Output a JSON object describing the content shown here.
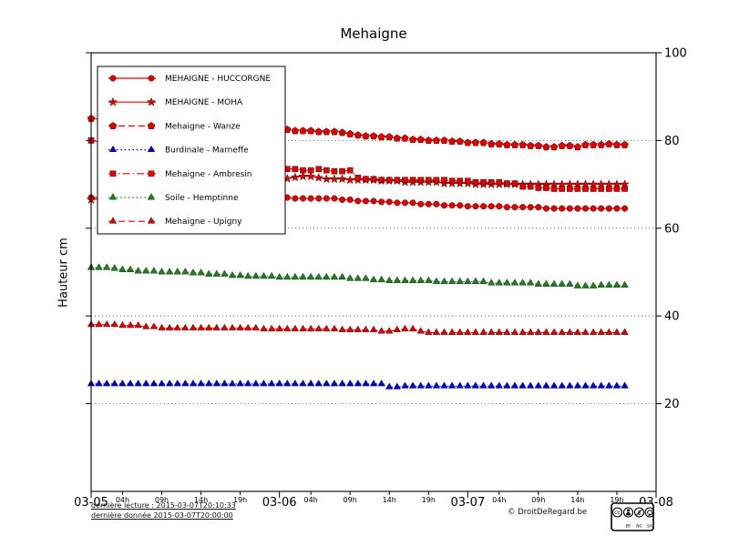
{
  "footer": {
    "last_read": "dernière lecture : 2015-03-07T20:10:33",
    "last_data": "dernière donnée  2015-03-07T20:00:00",
    "copyright": "© DroitDeRegard.be",
    "license": {
      "cc": "cc",
      "parts": [
        "BY",
        "NC",
        "SA"
      ]
    }
  },
  "chart_data": {
    "type": "line",
    "title": "Mehaigne",
    "ylabel": "Hauteur cm",
    "xlabel": "",
    "ylim": [
      0,
      100
    ],
    "xlim": [
      0,
      72
    ],
    "x_unit": "hours since 2015-03-05 00:00",
    "grid": "horizontal-dotted",
    "legend_position": "upper left",
    "y_ticks": [
      20,
      40,
      60,
      80,
      100
    ],
    "x_major_ticks": [
      {
        "t": 0,
        "label": "03-05"
      },
      {
        "t": 24,
        "label": "03-06"
      },
      {
        "t": 48,
        "label": "03-07"
      },
      {
        "t": 72,
        "label": "03-08"
      }
    ],
    "x_minor_ticks": [
      {
        "t": 4,
        "label": "04h"
      },
      {
        "t": 9,
        "label": "09h"
      },
      {
        "t": 14,
        "label": "14h"
      },
      {
        "t": 19,
        "label": "19h"
      },
      {
        "t": 28,
        "label": "04h"
      },
      {
        "t": 33,
        "label": "09h"
      },
      {
        "t": 38,
        "label": "14h"
      },
      {
        "t": 43,
        "label": "19h"
      },
      {
        "t": 52,
        "label": "04h"
      },
      {
        "t": 57,
        "label": "09h"
      },
      {
        "t": 62,
        "label": "14h"
      },
      {
        "t": 67,
        "label": "19h"
      }
    ],
    "series": [
      {
        "name": "MEHAIGNE - HUCCORGNE",
        "color": "#dd0000",
        "marker": "circle",
        "linestyle": "solid",
        "gap_point": [
          0,
          67
        ],
        "start_hour": 24,
        "step_hours": 1,
        "values": [
          67,
          67,
          66.8,
          66.8,
          66.8,
          66.8,
          66.8,
          66.8,
          66.5,
          66.5,
          66.2,
          66.2,
          66.2,
          66,
          66,
          65.8,
          65.8,
          65.8,
          65.5,
          65.5,
          65.5,
          65.2,
          65.2,
          65.2,
          65,
          65,
          65,
          65,
          65,
          64.8,
          64.8,
          64.8,
          64.8,
          64.8,
          64.5,
          64.5,
          64.5,
          64.5,
          64.5,
          64.5,
          64.5,
          64.5,
          64.5,
          64.5,
          64.5
        ]
      },
      {
        "name": "MEHAIGNE - MOHA",
        "color": "#dd0000",
        "marker": "star",
        "linestyle": "solid",
        "gap_point": [
          0,
          66.5
        ],
        "start_hour": 24,
        "step_hours": 1,
        "values": [
          70.8,
          71.3,
          71.6,
          71.8,
          71.8,
          71.5,
          71.2,
          71.2,
          71.2,
          71,
          71,
          71,
          71,
          70.8,
          70.8,
          70.8,
          70.5,
          70.5,
          70.5,
          70.5,
          70.5,
          70.2,
          70.2,
          70.2,
          70.2,
          70,
          70,
          70,
          70,
          70,
          70,
          70,
          70,
          70,
          70,
          70,
          70,
          70,
          70,
          70,
          70,
          70,
          70,
          70,
          70
        ]
      },
      {
        "name": "Mehaigne - Wanze",
        "color": "#dd0000",
        "marker": "pentagon",
        "linestyle": "dashed",
        "gap_point": [
          0,
          85
        ],
        "start_hour": 24,
        "step_hours": 1,
        "values": [
          82.5,
          82.5,
          82.2,
          82.2,
          82.2,
          82,
          82,
          82,
          81.8,
          81.5,
          81.2,
          81,
          81,
          80.8,
          80.8,
          80.5,
          80.5,
          80.2,
          80.2,
          80,
          80,
          80,
          79.8,
          79.8,
          79.5,
          79.5,
          79.5,
          79.2,
          79.2,
          79,
          79,
          79,
          78.8,
          78.8,
          78.5,
          78.5,
          78.8,
          78.8,
          78.5,
          79,
          79,
          79,
          79.2,
          79,
          79
        ]
      },
      {
        "name": "Burdinale - Marneffe",
        "color": "#0000cc",
        "marker": "triangle",
        "linestyle": "dotted",
        "start_hour": 0,
        "step_hours": 1,
        "values": [
          24.5,
          24.5,
          24.5,
          24.5,
          24.5,
          24.5,
          24.5,
          24.5,
          24.5,
          24.5,
          24.5,
          24.5,
          24.5,
          24.5,
          24.5,
          24.5,
          24.5,
          24.5,
          24.5,
          24.5,
          24.5,
          24.5,
          24.5,
          24.5,
          24.5,
          24.5,
          24.5,
          24.5,
          24.5,
          24.5,
          24.5,
          24.5,
          24.5,
          24.5,
          24.5,
          24.5,
          24.5,
          24.5,
          23.8,
          23.8,
          24,
          24,
          24,
          24,
          24,
          24,
          24,
          24,
          24,
          24,
          24,
          24,
          24,
          24,
          24,
          24,
          24,
          24,
          24,
          24,
          24,
          24,
          24,
          24,
          24,
          24,
          24,
          24,
          24
        ]
      },
      {
        "name": "Mehaigne - Ambresin",
        "color": "#dd0000",
        "marker": "square",
        "linestyle": "dashdot",
        "gap_point": [
          0,
          80
        ],
        "start_hour": 24,
        "step_hours": 1,
        "values": [
          73.5,
          73.5,
          73.5,
          73.2,
          73.2,
          73.5,
          73.2,
          73,
          73,
          73.2,
          71.5,
          71.2,
          71.2,
          71,
          71,
          71,
          71,
          71,
          71,
          71,
          71,
          71,
          70.8,
          70.8,
          70.8,
          70.5,
          70.5,
          70.5,
          70.5,
          70.2,
          70.2,
          69.5,
          69.5,
          69.2,
          69.2,
          69,
          69,
          69,
          69,
          69,
          69,
          69,
          69,
          69,
          69
        ]
      },
      {
        "name": "Soile - Hemptinne",
        "color": "#208020",
        "marker": "triangle",
        "linestyle": "dotted",
        "start_hour": 0,
        "step_hours": 1,
        "values": [
          51,
          51,
          51,
          50.8,
          50.5,
          50.5,
          50.2,
          50.2,
          50.2,
          50,
          50,
          50,
          50,
          49.8,
          49.8,
          49.5,
          49.5,
          49.5,
          49.2,
          49.2,
          49,
          49,
          49,
          49,
          48.8,
          48.8,
          48.8,
          48.8,
          48.8,
          48.8,
          48.8,
          48.8,
          48.8,
          48.5,
          48.5,
          48.5,
          48.2,
          48.2,
          48,
          48,
          48,
          48,
          48,
          48,
          47.8,
          47.8,
          47.8,
          47.8,
          47.8,
          47.8,
          47.8,
          47.5,
          47.5,
          47.5,
          47.5,
          47.5,
          47.5,
          47.2,
          47.2,
          47.2,
          47.2,
          47.2,
          46.8,
          46.8,
          46.8,
          47,
          47,
          47,
          47
        ]
      },
      {
        "name": "Mehaigne - Upigny",
        "color": "#dd0000",
        "marker": "triangle",
        "linestyle": "dashed",
        "start_hour": 0,
        "step_hours": 1,
        "values": [
          38,
          38,
          38,
          38,
          37.8,
          37.8,
          37.8,
          37.5,
          37.5,
          37.2,
          37.2,
          37.2,
          37.2,
          37.2,
          37.2,
          37.2,
          37.2,
          37.2,
          37.2,
          37.2,
          37.2,
          37.2,
          37,
          37,
          37,
          37,
          37,
          37,
          37,
          37,
          37,
          37,
          36.8,
          36.8,
          36.8,
          36.8,
          36.8,
          36.5,
          36.5,
          36.8,
          37,
          37,
          36.5,
          36.2,
          36.2,
          36.2,
          36.2,
          36.2,
          36.2,
          36.2,
          36.2,
          36.2,
          36.2,
          36.2,
          36.2,
          36.2,
          36.2,
          36.2,
          36.2,
          36.2,
          36.2,
          36.2,
          36.2,
          36.2,
          36.2,
          36.2,
          36.2,
          36.2,
          36.2
        ]
      }
    ]
  }
}
